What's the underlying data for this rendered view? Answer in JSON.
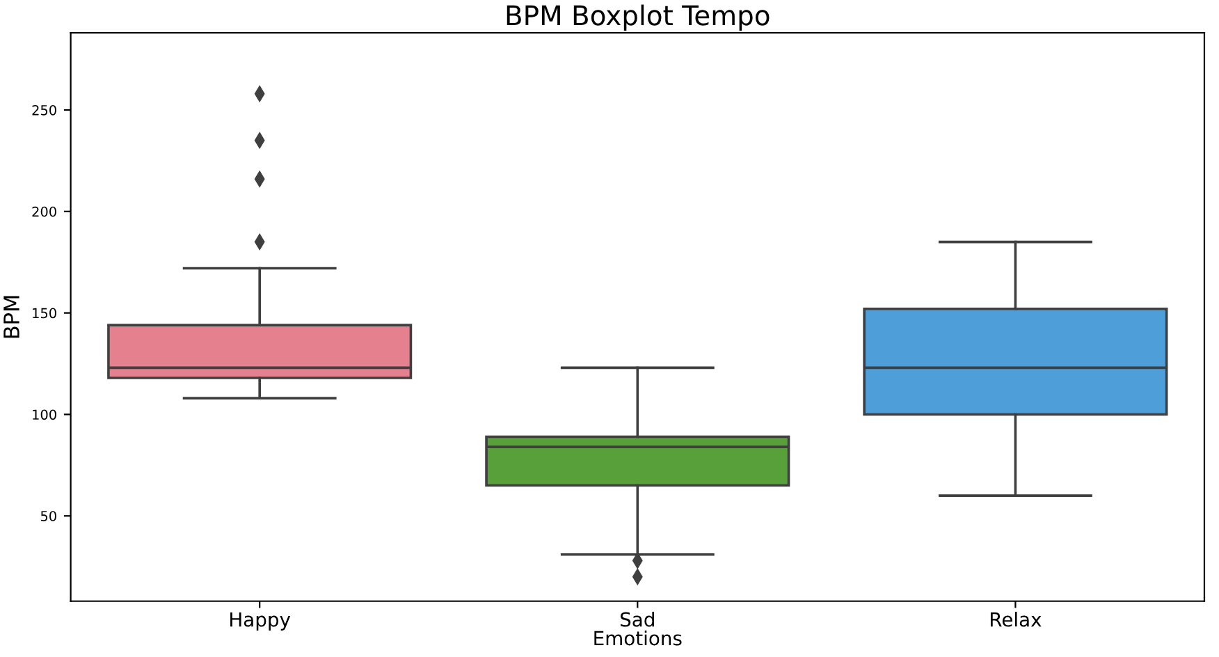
{
  "chart_data": {
    "type": "box",
    "title": "BPM Boxplot Tempo",
    "xlabel": "Emotions",
    "ylabel": "BPM",
    "categories": [
      "Happy",
      "Sad",
      "Relax"
    ],
    "colors": [
      "#e5808f",
      "#57a03a",
      "#4e9fd9"
    ],
    "boxes": [
      {
        "low": 108,
        "q1": 118,
        "median": 123,
        "q3": 144,
        "high": 172,
        "outliers": [
          185,
          216,
          235,
          258
        ]
      },
      {
        "low": 31,
        "q1": 65,
        "median": 84,
        "q3": 89,
        "high": 123,
        "outliers": [
          28,
          20
        ]
      },
      {
        "low": 60,
        "q1": 100,
        "median": 123,
        "q3": 152,
        "high": 185
      }
    ],
    "ylim": [
      8,
      288
    ],
    "yticks": [
      50,
      100,
      150,
      200,
      250
    ],
    "grid": false,
    "marker": "diamond"
  }
}
